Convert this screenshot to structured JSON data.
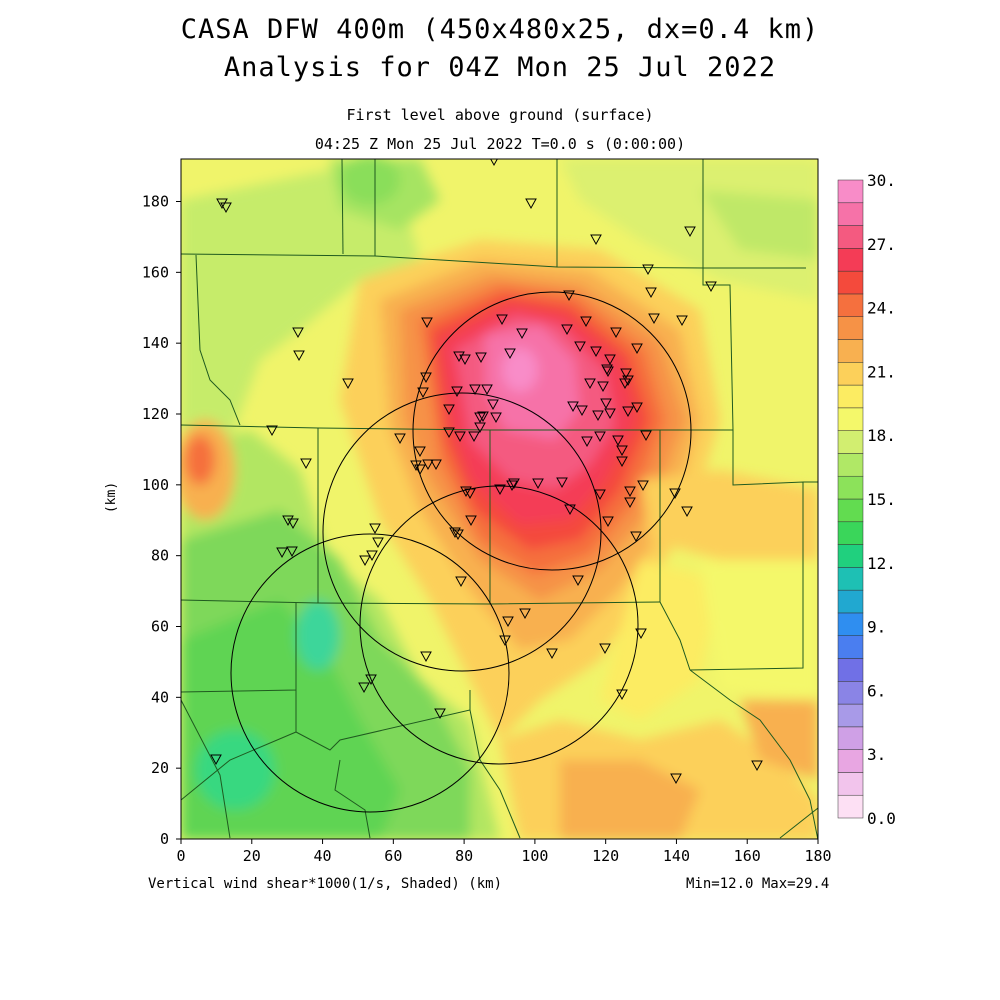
{
  "header": {
    "title_line1": "CASA DFW 400m (450x480x25, dx=0.4 km)",
    "title_line2": "Analysis for 04Z Mon 25 Jul 2022",
    "subtitle_line1": "First level above ground (surface)",
    "subtitle_line2": "04:25 Z Mon 25 Jul 2022   T=0.0 s (0:00:00)"
  },
  "footer": {
    "field_label": "Vertical wind shear*1000(1/s, Shaded)  (km)",
    "range_label": "Min=12.0 Max=29.4"
  },
  "axes": {
    "x_unit_label": "(km)",
    "y_unit_label": "(km)",
    "x_ticks": [
      "0",
      "20",
      "40",
      "60",
      "80",
      "100",
      "120",
      "140",
      "160",
      "180"
    ],
    "y_ticks": [
      "0",
      "20",
      "40",
      "60",
      "80",
      "100",
      "120",
      "140",
      "160",
      "180"
    ]
  },
  "colorbar": {
    "labels": [
      "0.0",
      "3.",
      "6.",
      "9.",
      "12.",
      "15.",
      "18.",
      "21.",
      "24.",
      "27.",
      "30."
    ],
    "colors_bottom_to_top": [
      "#fde0f4",
      "#f2c4ec",
      "#e8a6e2",
      "#cfa0e6",
      "#a89ae8",
      "#8a84e6",
      "#7070e6",
      "#4a7ef0",
      "#2f8ef0",
      "#21a8d0",
      "#1ec0b4",
      "#20d07e",
      "#3ad65a",
      "#62dc50",
      "#8ce25a",
      "#b0e866",
      "#d2ee70",
      "#f4f86a",
      "#fcec62",
      "#fcd05a",
      "#f8b050",
      "#f69246",
      "#f5703e",
      "#f44a3c",
      "#f43c56",
      "#f45a80",
      "#f672a8",
      "#f88cc8"
    ]
  },
  "map": {
    "field_min": 12.0,
    "field_max": 29.4
  }
}
